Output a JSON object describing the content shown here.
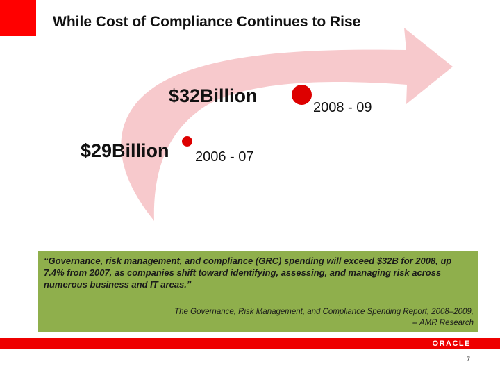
{
  "slide": {
    "title": "While Cost of Compliance Continues to Rise",
    "points": [
      {
        "value": "$29Billion",
        "period": "2006 - 07"
      },
      {
        "value": "$32Billion",
        "period": "2008 - 09"
      }
    ],
    "quote": "“Governance, risk management, and compliance (GRC) spending will exceed $32B for 2008, up 7.4% from 2007, as companies shift toward identifying, assessing, and managing risk across numerous business and IT areas.”",
    "source_line1": "The Governance, Risk Management, and Compliance Spending Report, 2008–2009,",
    "source_line2": "-- AMR Research",
    "logo_text": "ORACLE",
    "page_number": "7"
  },
  "colors": {
    "accent_red": "#ff0000",
    "arrow_pink": "#f7c9cc",
    "dot_red": "#dd0000",
    "quote_green": "#8faf4c"
  }
}
